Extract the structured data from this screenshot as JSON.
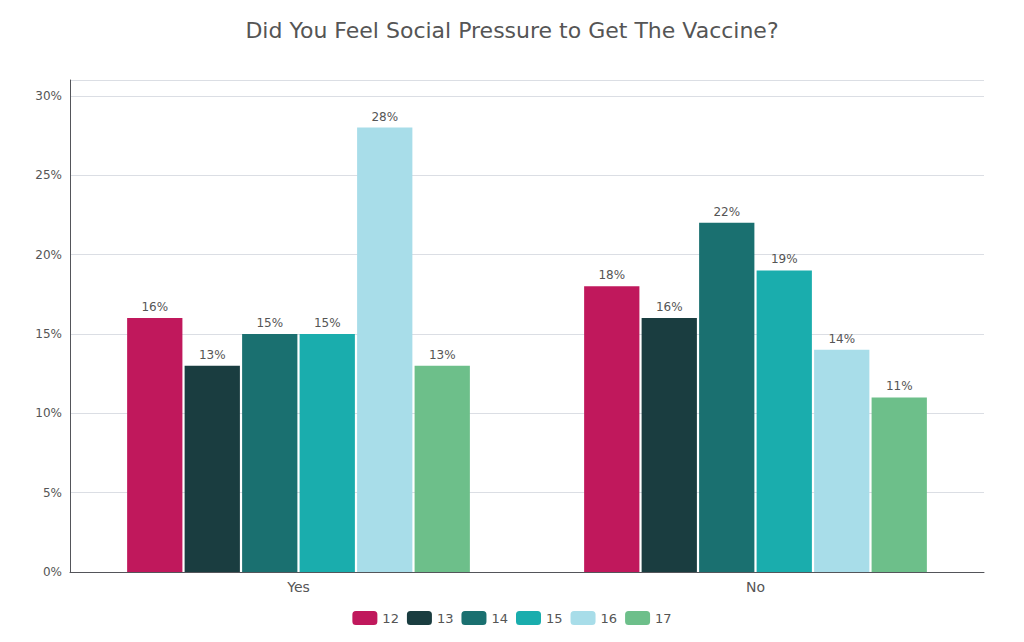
{
  "chart_data": {
    "type": "bar",
    "title": "Did You Feel Social Pressure to Get The Vaccine?",
    "categories": [
      "Yes",
      "No"
    ],
    "series": [
      {
        "name": "12",
        "color": "#C0185C",
        "values": [
          16,
          18
        ],
        "value_labels": [
          "16%",
          "18%"
        ]
      },
      {
        "name": "13",
        "color": "#1A3D40",
        "values": [
          13,
          16
        ],
        "value_labels": [
          "13%",
          "16%"
        ]
      },
      {
        "name": "14",
        "color": "#1A7070",
        "values": [
          15,
          22
        ],
        "value_labels": [
          "15%",
          "22%"
        ]
      },
      {
        "name": "15",
        "color": "#1AADAD",
        "values": [
          15,
          19
        ],
        "value_labels": [
          "15%",
          "19%"
        ]
      },
      {
        "name": "16",
        "color": "#A8DDE9",
        "values": [
          28,
          14
        ],
        "value_labels": [
          "28%",
          "14%"
        ]
      },
      {
        "name": "17",
        "color": "#6DBF8A",
        "values": [
          13,
          11
        ],
        "value_labels": [
          "13%",
          "11%"
        ]
      }
    ],
    "ylim": [
      0,
      31
    ],
    "yticks": [
      {
        "value": 0,
        "label": "0%"
      },
      {
        "value": 5,
        "label": "5%"
      },
      {
        "value": 10,
        "label": "10%"
      },
      {
        "value": 15,
        "label": "15%"
      },
      {
        "value": 20,
        "label": "20%"
      },
      {
        "value": 25,
        "label": "25%"
      },
      {
        "value": 30,
        "label": "30%"
      }
    ],
    "grid": true,
    "legend": "bottom",
    "data_labels": true
  }
}
